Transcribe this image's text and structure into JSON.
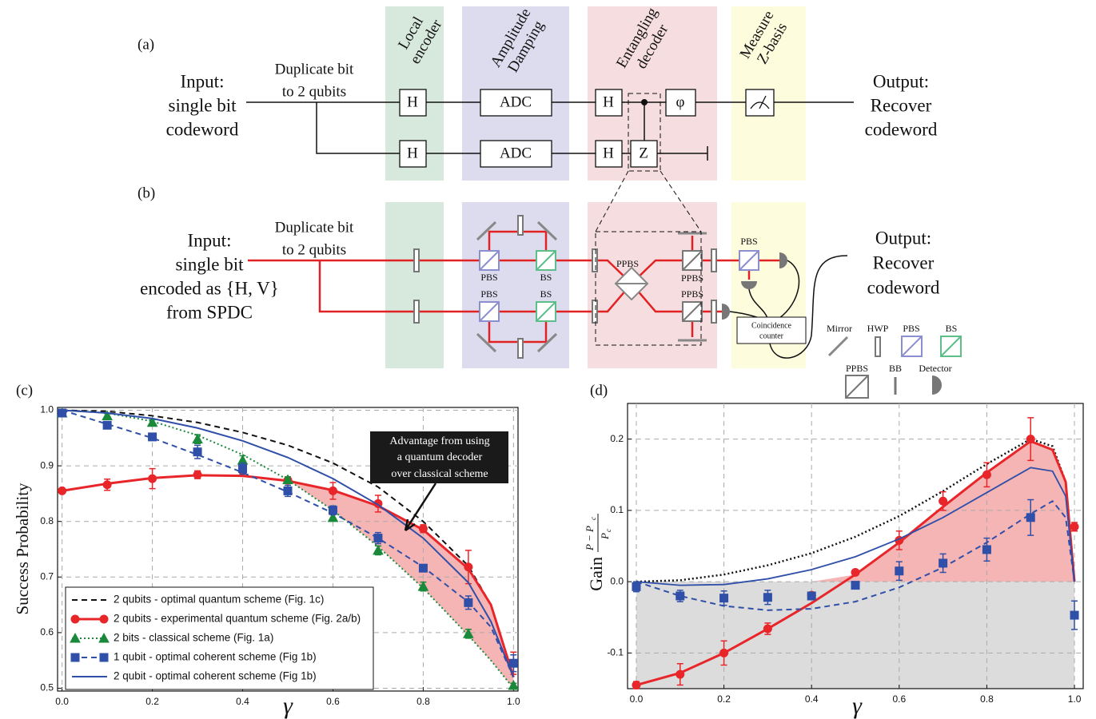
{
  "diagram": {
    "a": {
      "label": "(a)",
      "input": [
        "Input:",
        "single bit",
        "codeword"
      ],
      "duplicate": [
        "Duplicate bit",
        "to 2 qubits"
      ],
      "stages": [
        [
          "Local",
          "encoder"
        ],
        [
          "Amplitude",
          "Damping"
        ],
        [
          "Entangling",
          "decoder"
        ],
        [
          "Measure",
          "Z-basis"
        ]
      ],
      "gates": [
        "H",
        "ADC",
        "H",
        "φ",
        "H",
        "ADC",
        "H",
        "Z"
      ],
      "output": [
        "Output:",
        "Recover",
        "codeword"
      ]
    },
    "b": {
      "label": "(b)",
      "input": [
        "Input:",
        "single bit",
        "encoded as {H, V}",
        "from SPDC"
      ],
      "duplicate": [
        "Duplicate bit",
        "to 2 qubits"
      ],
      "components": [
        "PBS",
        "BS",
        "PBS",
        "BS",
        "PPBS",
        "PPBS",
        "PPBS",
        "PBS"
      ],
      "counter": [
        "Coincidence",
        "counter"
      ],
      "output": [
        "Output:",
        "Recover",
        "codeword"
      ],
      "legend": [
        "Mirror",
        "HWP",
        "PBS",
        "BS",
        "PPBS",
        "BB",
        "Detector"
      ]
    }
  },
  "chart_data": [
    {
      "type": "line",
      "label": "(c)",
      "ylabel": "Success Probability",
      "xlabel": "γ",
      "xlim": [
        -0.01,
        1.01
      ],
      "ylim": [
        0.495,
        1.005
      ],
      "xticks": [
        {
          "value": 0,
          "label": "0.0"
        },
        0.2,
        0.4,
        0.6,
        0.8,
        {
          "value": 1,
          "label": "1.0"
        }
      ],
      "yticks": [
        0.5,
        0.6,
        0.7,
        0.8,
        0.9,
        {
          "value": 1,
          "label": "1.0"
        }
      ],
      "grid": true,
      "legend": "lower left",
      "annotation": [
        "Advantage from using",
        "a quantum decoder",
        "over classical scheme"
      ],
      "x": [
        0,
        0.1,
        0.2,
        0.3,
        0.4,
        0.5,
        0.6,
        0.7,
        0.8,
        0.9,
        0.95,
        1.0
      ],
      "point_x": [
        0,
        0.1,
        0.2,
        0.3,
        0.4,
        0.5,
        0.6,
        0.7,
        0.8,
        0.9,
        1.0
      ],
      "series": [
        {
          "name": "2 qubits - optimal quantum scheme (Fig. 1c)",
          "color": "#111111",
          "dash": "dashed",
          "width": 2,
          "values": [
            1.0,
            0.998,
            0.99,
            0.978,
            0.96,
            0.937,
            0.905,
            0.862,
            0.8,
            0.72,
            0.65,
            0.52
          ]
        },
        {
          "name": "2 qubits - experimental quantum scheme (Fig. 2a/b)",
          "color": "#e8262a",
          "dash": "solid",
          "width": 3,
          "marker": "circle",
          "values": [
            0.855,
            0.868,
            0.878,
            0.883,
            0.882,
            0.873,
            0.856,
            0.828,
            0.785,
            0.715,
            0.65,
            0.52
          ],
          "point_values": [
            0.855,
            0.866,
            0.877,
            0.884,
            0.891,
            0.874,
            0.855,
            0.832,
            0.787,
            0.718,
            0.545
          ],
          "point_errors": [
            0.003,
            0.01,
            0.018,
            0.007,
            0.01,
            0.006,
            0.015,
            0.015,
            0.007,
            0.03,
            0.02
          ]
        },
        {
          "name": "2 bits - classical scheme (Fig. 1a)",
          "color": "#1a8a3a",
          "dash": "dotted",
          "width": 2,
          "marker": "triangle",
          "values": [
            1.0,
            0.995,
            0.98,
            0.955,
            0.92,
            0.875,
            0.82,
            0.755,
            0.68,
            0.595,
            0.55,
            0.5
          ],
          "point_values": [
            0.995,
            0.99,
            0.978,
            0.948,
            0.91,
            0.875,
            0.807,
            0.748,
            0.683,
            0.598,
            0.505
          ],
          "point_errors": [
            0.004,
            0.004,
            0.005,
            0.008,
            0.008,
            0.005,
            0.006,
            0.008,
            0.008,
            0.008,
            0.004
          ]
        },
        {
          "name": "1 qubit - optimal coherent scheme (Fig 1b)",
          "color": "#2f4fa8",
          "dash": "dashed",
          "width": 2,
          "marker": "square",
          "values": [
            1.0,
            0.975,
            0.95,
            0.92,
            0.888,
            0.853,
            0.815,
            0.77,
            0.718,
            0.655,
            0.61,
            0.52
          ],
          "point_values": [
            0.995,
            0.973,
            0.952,
            0.925,
            0.895,
            0.855,
            0.82,
            0.77,
            0.716,
            0.654,
            0.545
          ],
          "point_errors": [
            0.004,
            0.004,
            0.006,
            0.012,
            0.01,
            0.01,
            0.008,
            0.01,
            0.006,
            0.012,
            0.015
          ]
        },
        {
          "name": "2 qubit - optimal coherent scheme (Fig 1b)",
          "color": "#2f4fa8",
          "dash": "solid",
          "width": 2,
          "values": [
            1.0,
            0.995,
            0.985,
            0.968,
            0.945,
            0.915,
            0.877,
            0.83,
            0.77,
            0.69,
            0.62,
            0.52
          ]
        }
      ]
    },
    {
      "type": "line",
      "label": "(d)",
      "ylabel": "Gain",
      "ylabel_formula": {
        "numerator": "P − P",
        "numerator_sub": "c",
        "denominator": "P",
        "denominator_sub": "c"
      },
      "xlabel": "γ",
      "xlim": [
        -0.02,
        1.02
      ],
      "ylim": [
        -0.15,
        0.25
      ],
      "xticks": [
        {
          "value": 0,
          "label": "0.0"
        },
        0.2,
        0.4,
        0.6,
        0.8,
        {
          "value": 1,
          "label": "1.0"
        }
      ],
      "yticks": [
        -0.1,
        {
          "value": 0,
          "label": "0.0"
        },
        0.1,
        0.2
      ],
      "grid": true,
      "x": [
        0,
        0.1,
        0.2,
        0.3,
        0.4,
        0.5,
        0.6,
        0.7,
        0.8,
        0.9,
        0.95,
        0.98,
        1.0
      ],
      "point_x": [
        0,
        0.1,
        0.2,
        0.3,
        0.4,
        0.5,
        0.6,
        0.7,
        0.8,
        0.9,
        1.0
      ],
      "series": [
        {
          "color": "#111111",
          "dash": "dotted",
          "width": 2.5,
          "values": [
            0,
            0.002,
            0.01,
            0.023,
            0.04,
            0.063,
            0.092,
            0.127,
            0.165,
            0.2,
            0.19,
            0.14,
            0.0
          ]
        },
        {
          "color": "#e8262a",
          "dash": "solid",
          "width": 3,
          "marker": "circle",
          "values": [
            -0.145,
            -0.128,
            -0.1,
            -0.066,
            -0.03,
            0.01,
            0.055,
            0.105,
            0.153,
            0.197,
            0.185,
            0.14,
            0.0
          ],
          "point_values": [
            -0.145,
            -0.13,
            -0.1,
            -0.066,
            -0.019,
            0.013,
            0.058,
            0.113,
            0.15,
            0.2,
            0.077
          ],
          "point_errors": [
            0.005,
            0.015,
            0.017,
            0.008,
            0.003,
            0.002,
            0.013,
            0.013,
            0.017,
            0.03,
            0.006
          ]
        },
        {
          "color": "#2f4fa8",
          "dash": "solid",
          "width": 1.8,
          "values": [
            0,
            -0.005,
            -0.004,
            0.004,
            0.017,
            0.035,
            0.06,
            0.09,
            0.125,
            0.16,
            0.155,
            0.12,
            0.0
          ]
        },
        {
          "color": "#2f4fa8",
          "dash": "dashed",
          "width": 2,
          "marker": "square",
          "values": [
            0,
            -0.02,
            -0.034,
            -0.04,
            -0.038,
            -0.028,
            -0.008,
            0.02,
            0.055,
            0.095,
            0.113,
            0.09,
            0.0
          ],
          "point_values": [
            -0.007,
            -0.02,
            -0.023,
            -0.022,
            -0.02,
            -0.005,
            0.015,
            0.026,
            0.045,
            0.09,
            -0.047
          ],
          "point_errors": [
            0.007,
            0.008,
            0.01,
            0.01,
            0.004,
            0.003,
            0.013,
            0.013,
            0.016,
            0.025,
            0.02
          ]
        }
      ]
    }
  ]
}
